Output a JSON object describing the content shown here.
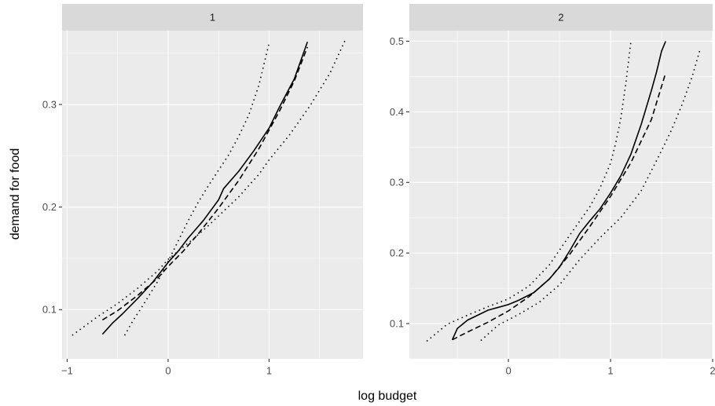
{
  "chart_data": {
    "type": "line",
    "xlabel": "log budget",
    "ylabel": "demand for food",
    "grid": true,
    "legend": "none",
    "line_styles": {
      "estimate": "solid",
      "parametric": "dashed",
      "bands": "dotted"
    },
    "color": "#000000",
    "panels": [
      {
        "strip_label": "1",
        "xlim": [
          -1.05,
          1.93
        ],
        "ylim": [
          0.052,
          0.372
        ],
        "xticks": [
          -1,
          0,
          1
        ],
        "xtick_labels": [
          "−1",
          "0",
          "1"
        ],
        "yticks": [
          0.1,
          0.2,
          0.3
        ],
        "ytick_labels": [
          "0.1",
          "0.2",
          "0.3"
        ],
        "series": [
          {
            "style": "solid",
            "x": [
              -0.65,
              -0.55,
              -0.45,
              -0.3,
              -0.15,
              0.0,
              0.1,
              0.2,
              0.35,
              0.5,
              0.55,
              0.7,
              0.85,
              1.0,
              1.1,
              1.25,
              1.38
            ],
            "y": [
              0.076,
              0.087,
              0.096,
              0.111,
              0.127,
              0.146,
              0.157,
              0.17,
              0.187,
              0.207,
              0.218,
              0.235,
              0.255,
              0.277,
              0.297,
              0.325,
              0.361
            ]
          },
          {
            "style": "dashed",
            "x": [
              -0.65,
              -0.5,
              -0.3,
              -0.1,
              0.0,
              0.15,
              0.3,
              0.5,
              0.7,
              0.9,
              1.1,
              1.25,
              1.38
            ],
            "y": [
              0.09,
              0.099,
              0.114,
              0.131,
              0.142,
              0.157,
              0.174,
              0.199,
              0.226,
              0.257,
              0.293,
              0.323,
              0.356
            ]
          },
          {
            "style": "dotted",
            "x": [
              -0.95,
              -0.7,
              -0.5,
              -0.3,
              -0.1,
              0.0,
              0.1,
              0.25,
              0.4,
              0.55,
              0.7,
              0.9,
              1.0,
              1.2,
              1.4,
              1.6,
              1.75
            ],
            "y": [
              0.075,
              0.093,
              0.106,
              0.121,
              0.138,
              0.149,
              0.157,
              0.169,
              0.182,
              0.196,
              0.21,
              0.232,
              0.246,
              0.27,
              0.298,
              0.33,
              0.362
            ]
          },
          {
            "style": "dotted",
            "x": [
              -0.43,
              -0.35,
              -0.25,
              -0.1,
              0.0,
              0.1,
              0.2,
              0.3,
              0.4,
              0.5,
              0.6,
              0.7,
              0.8,
              0.9,
              1.0
            ],
            "y": [
              0.075,
              0.089,
              0.104,
              0.128,
              0.147,
              0.167,
              0.187,
              0.205,
              0.221,
              0.236,
              0.251,
              0.269,
              0.29,
              0.319,
              0.36
            ]
          }
        ]
      },
      {
        "strip_label": "2",
        "xlim": [
          -0.97,
          2.0
        ],
        "ylim": [
          0.05,
          0.515
        ],
        "xticks": [
          0,
          1,
          2
        ],
        "xtick_labels": [
          "0",
          "1",
          "2"
        ],
        "yticks": [
          0.1,
          0.2,
          0.3,
          0.4,
          0.5
        ],
        "ytick_labels": [
          "0.1",
          "0.2",
          "0.3",
          "0.4",
          "0.5"
        ],
        "series": [
          {
            "style": "solid",
            "x": [
              -0.55,
              -0.5,
              -0.4,
              -0.2,
              0.0,
              0.1,
              0.25,
              0.4,
              0.5,
              0.6,
              0.7,
              0.8,
              0.9,
              1.0,
              1.1,
              1.2,
              1.3,
              1.4,
              1.45,
              1.5,
              1.54
            ],
            "y": [
              0.077,
              0.093,
              0.105,
              0.119,
              0.127,
              0.133,
              0.144,
              0.163,
              0.18,
              0.203,
              0.228,
              0.246,
              0.263,
              0.285,
              0.309,
              0.34,
              0.382,
              0.43,
              0.456,
              0.486,
              0.5
            ]
          },
          {
            "style": "dashed",
            "x": [
              -0.55,
              -0.4,
              -0.2,
              0.0,
              0.2,
              0.4,
              0.6,
              0.8,
              1.0,
              1.2,
              1.4,
              1.54
            ],
            "y": [
              0.077,
              0.088,
              0.102,
              0.118,
              0.138,
              0.163,
              0.198,
              0.238,
              0.28,
              0.328,
              0.389,
              0.455
            ]
          },
          {
            "style": "dotted",
            "x": [
              -0.8,
              -0.6,
              -0.4,
              -0.2,
              0.0,
              0.2,
              0.4,
              0.6,
              0.8,
              0.9,
              1.0,
              1.05,
              1.1,
              1.15,
              1.2
            ],
            "y": [
              0.075,
              0.099,
              0.112,
              0.124,
              0.135,
              0.153,
              0.183,
              0.225,
              0.266,
              0.293,
              0.327,
              0.355,
              0.39,
              0.44,
              0.5
            ]
          },
          {
            "style": "dotted",
            "x": [
              -0.27,
              -0.1,
              0.1,
              0.3,
              0.5,
              0.7,
              0.9,
              1.1,
              1.3,
              1.5,
              1.6,
              1.7,
              1.8,
              1.88
            ],
            "y": [
              0.076,
              0.098,
              0.113,
              0.13,
              0.155,
              0.191,
              0.222,
              0.25,
              0.288,
              0.345,
              0.375,
              0.41,
              0.45,
              0.49
            ]
          }
        ]
      }
    ]
  }
}
